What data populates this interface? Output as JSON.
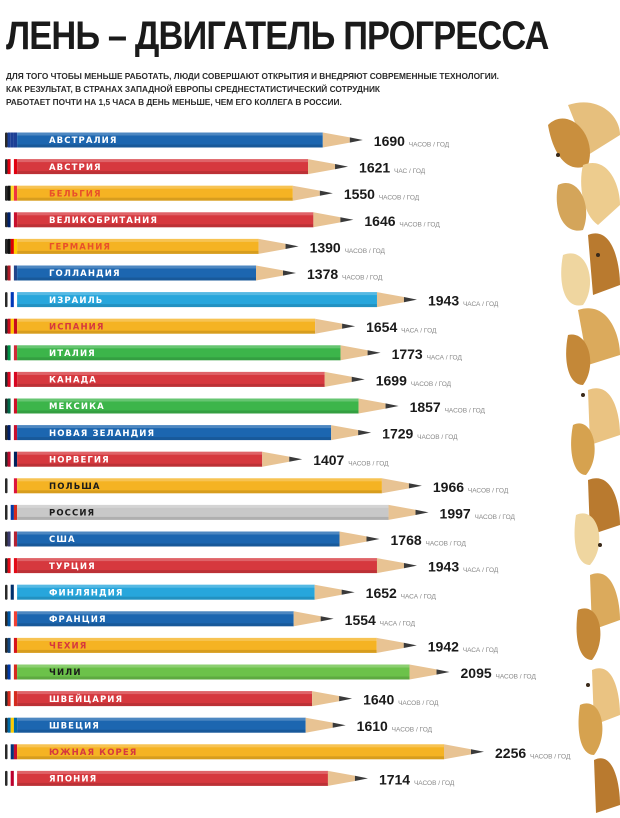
{
  "title": "ЛЕНЬ – ДВИГАТЕЛЬ ПРОГРЕССА",
  "subtitle_lines": [
    "ДЛЯ ТОГО ЧТОБЫ МЕНЬШЕ РАБОТАТЬ, ЛЮДИ СОВЕРШАЮТ ОТКРЫТИЯ И ВНЕДРЯЮТ СОВРЕМЕННЫЕ ТЕХНОЛОГИИ.",
    "КАК РЕЗУЛЬТАТ, В СТРАНАХ ЗАПАДНОЙ ЕВРОПЫ СРЕДНЕСТАТИСТИЧЕСКИЙ СОТРУДНИК",
    "РАБОТАЕТ ПОЧТИ НА 1,5 ЧАСА В ДЕНЬ МЕНЬШЕ, ЧЕМ ЕГО КОЛЛЕГА В РОССИИ."
  ],
  "chart_data": {
    "type": "bar",
    "orientation": "horizontal",
    "categories": [
      "АВСТРАЛИЯ",
      "АВСТРИЯ",
      "БЕЛЬГИЯ",
      "ВЕЛИКОБРИТАНИЯ",
      "ГЕРМАНИЯ",
      "ГОЛЛАНДИЯ",
      "ИЗРАИЛЬ",
      "ИСПАНИЯ",
      "ИТАЛИЯ",
      "КАНАДА",
      "МЕКСИКА",
      "НОВАЯ ЗЕЛАНДИЯ",
      "НОРВЕГИЯ",
      "ПОЛЬША",
      "РОССИЯ",
      "США",
      "ТУРЦИЯ",
      "ФИНЛЯНДИЯ",
      "ФРАНЦИЯ",
      "ЧЕХИЯ",
      "ЧИЛИ",
      "ШВЕЙЦАРИЯ",
      "ШВЕЦИЯ",
      "ЮЖНАЯ КОРЕЯ",
      "ЯПОНИЯ"
    ],
    "values": [
      1690,
      1621,
      1550,
      1646,
      1390,
      1378,
      1943,
      1654,
      1773,
      1699,
      1857,
      1729,
      1407,
      1966,
      1997,
      1768,
      1943,
      1652,
      1554,
      1942,
      2095,
      1640,
      1610,
      2256,
      1714
    ],
    "units": [
      "ЧАСОВ / ГОД",
      "ЧАС / ГОД",
      "ЧАСОВ / ГОД",
      "ЧАСОВ / ГОД",
      "ЧАСОВ / ГОД",
      "ЧАСОВ / ГОД",
      "ЧАСА / ГОД",
      "ЧАСА / ГОД",
      "ЧАСА / ГОД",
      "ЧАСОВ / ГОД",
      "ЧАСОВ / ГОД",
      "ЧАСОВ / ГОД",
      "ЧАСОВ / ГОД",
      "ЧАСОВ / ГОД",
      "ЧАСОВ / ГОД",
      "ЧАСОВ / ГОД",
      "ЧАСА / ГОД",
      "ЧАСА / ГОД",
      "ЧАСА / ГОД",
      "ЧАСА / ГОД",
      "ЧАСОВ / ГОД",
      "ЧАСОВ / ГОД",
      "ЧАСОВ / ГОД",
      "ЧАСОВ / ГОД",
      "ЧАСОВ / ГОД"
    ],
    "pencil_colors": [
      "#1c66b0",
      "#d6383e",
      "#f5b323",
      "#d6383e",
      "#f5b323",
      "#1c66b0",
      "#27a6dc",
      "#f5b323",
      "#3cb54a",
      "#d6383e",
      "#3cb54a",
      "#1c66b0",
      "#d6383e",
      "#f5b323",
      "#c8c8c8",
      "#1c66b0",
      "#d6383e",
      "#27a6dc",
      "#1c66b0",
      "#f5b323",
      "#6cc24a",
      "#d6383e",
      "#1c66b0",
      "#f5b323",
      "#d6383e"
    ],
    "label_colors": [
      "#ffffff",
      "#ffffff",
      "#e8502a",
      "#ffffff",
      "#e8502a",
      "#ffffff",
      "#ffffff",
      "#d6383e",
      "#ffffff",
      "#ffffff",
      "#ffffff",
      "#ffffff",
      "#ffffff",
      "#1a1a1a",
      "#1a1a1a",
      "#ffffff",
      "#ffffff",
      "#ffffff",
      "#ffffff",
      "#d6383e",
      "#1a1a1a",
      "#ffffff",
      "#ffffff",
      "#d6383e",
      "#ffffff"
    ],
    "flags": [
      [
        "#1c3f95",
        "#1c3f95",
        "#1c3f95"
      ],
      [
        "#e1000f",
        "#ffffff",
        "#e1000f"
      ],
      [
        "#111111",
        "#fdda24",
        "#ef3340"
      ],
      [
        "#012169",
        "#ffffff",
        "#c8102e"
      ],
      [
        "#111111",
        "#dd0000",
        "#ffce00"
      ],
      [
        "#ae1c28",
        "#ffffff",
        "#21468b"
      ],
      [
        "#ffffff",
        "#0038b8",
        "#ffffff"
      ],
      [
        "#c60b1e",
        "#ffc400",
        "#c60b1e"
      ],
      [
        "#009246",
        "#ffffff",
        "#ce2b37"
      ],
      [
        "#d80621",
        "#ffffff",
        "#d80621"
      ],
      [
        "#006847",
        "#ffffff",
        "#ce1126"
      ],
      [
        "#012169",
        "#ffffff",
        "#c8102e"
      ],
      [
        "#ba0c2f",
        "#ffffff",
        "#00205b"
      ],
      [
        "#ffffff",
        "#ffffff",
        "#dc143c"
      ],
      [
        "#ffffff",
        "#0039a6",
        "#d52b1e"
      ],
      [
        "#3c3b6e",
        "#ffffff",
        "#b22234"
      ],
      [
        "#e30a17",
        "#ffffff",
        "#e30a17"
      ],
      [
        "#ffffff",
        "#002f6c",
        "#ffffff"
      ],
      [
        "#0055a4",
        "#ffffff",
        "#ef4135"
      ],
      [
        "#11457e",
        "#ffffff",
        "#d7141a"
      ],
      [
        "#0039a6",
        "#ffffff",
        "#d52b1e"
      ],
      [
        "#d52b1e",
        "#ffffff",
        "#d52b1e"
      ],
      [
        "#006aa7",
        "#fecc00",
        "#006aa7"
      ],
      [
        "#ffffff",
        "#003478",
        "#c60c30"
      ],
      [
        "#ffffff",
        "#bc002d",
        "#ffffff"
      ]
    ]
  }
}
